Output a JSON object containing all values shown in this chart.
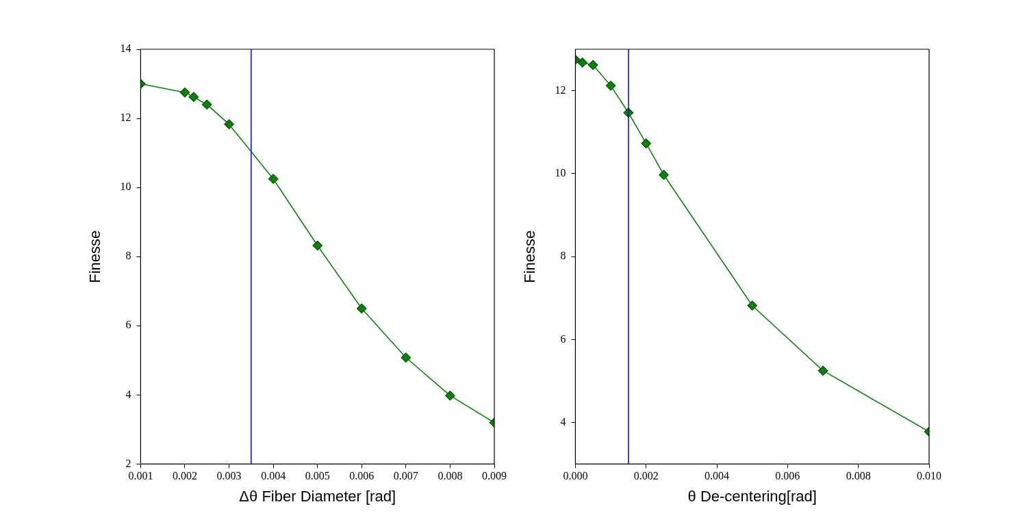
{
  "chart_data": [
    {
      "type": "line",
      "xlabel": "Δθ Fiber Diameter [rad]",
      "ylabel": "Finesse",
      "marker": "diamond",
      "line_style": "solid",
      "grid": false,
      "legend": false,
      "x": [
        0.001,
        0.002,
        0.0022,
        0.0025,
        0.003,
        0.004,
        0.005,
        0.006,
        0.007,
        0.008,
        0.009
      ],
      "series": [
        {
          "color": "#008000",
          "values": [
            13.0,
            12.75,
            12.62,
            12.4,
            11.83,
            10.25,
            8.32,
            6.5,
            5.08,
            3.98,
            3.2
          ]
        }
      ],
      "xlim": [
        0.001,
        0.009
      ],
      "xticks": [
        0.001,
        0.002,
        0.003,
        0.004,
        0.005,
        0.006,
        0.007,
        0.008,
        0.009
      ],
      "ylim": [
        2,
        14
      ],
      "yticks": [
        2,
        4,
        6,
        8,
        10,
        12,
        14
      ],
      "ref_lines": [
        {
          "axis": "x",
          "value": 0.0035,
          "color": "#0000ff"
        }
      ]
    },
    {
      "type": "line",
      "xlabel": "θ De-centering[rad]",
      "ylabel": "Finesse",
      "marker": "diamond",
      "line_style": "solid",
      "grid": false,
      "legend": false,
      "x": [
        0,
        0.0002,
        0.0005,
        0.001,
        0.0015,
        0.002,
        0.0025,
        0.005,
        0.007,
        0.01
      ],
      "series": [
        {
          "color": "#008000",
          "values": [
            12.75,
            12.68,
            12.62,
            12.12,
            11.47,
            10.73,
            9.97,
            6.82,
            5.25,
            3.78
          ]
        }
      ],
      "xlim": [
        0,
        0.01
      ],
      "xticks": [
        {
          "value": 0,
          "label": "0.000"
        },
        0.002,
        0.004,
        0.006,
        0.008,
        {
          "value": 0.01,
          "label": "0.010"
        }
      ],
      "ylim": [
        3,
        13
      ],
      "yticks": [
        4,
        6,
        8,
        10,
        12
      ],
      "ref_lines": [
        {
          "axis": "x",
          "value": 0.0015,
          "color": "#0000ff"
        }
      ]
    }
  ]
}
